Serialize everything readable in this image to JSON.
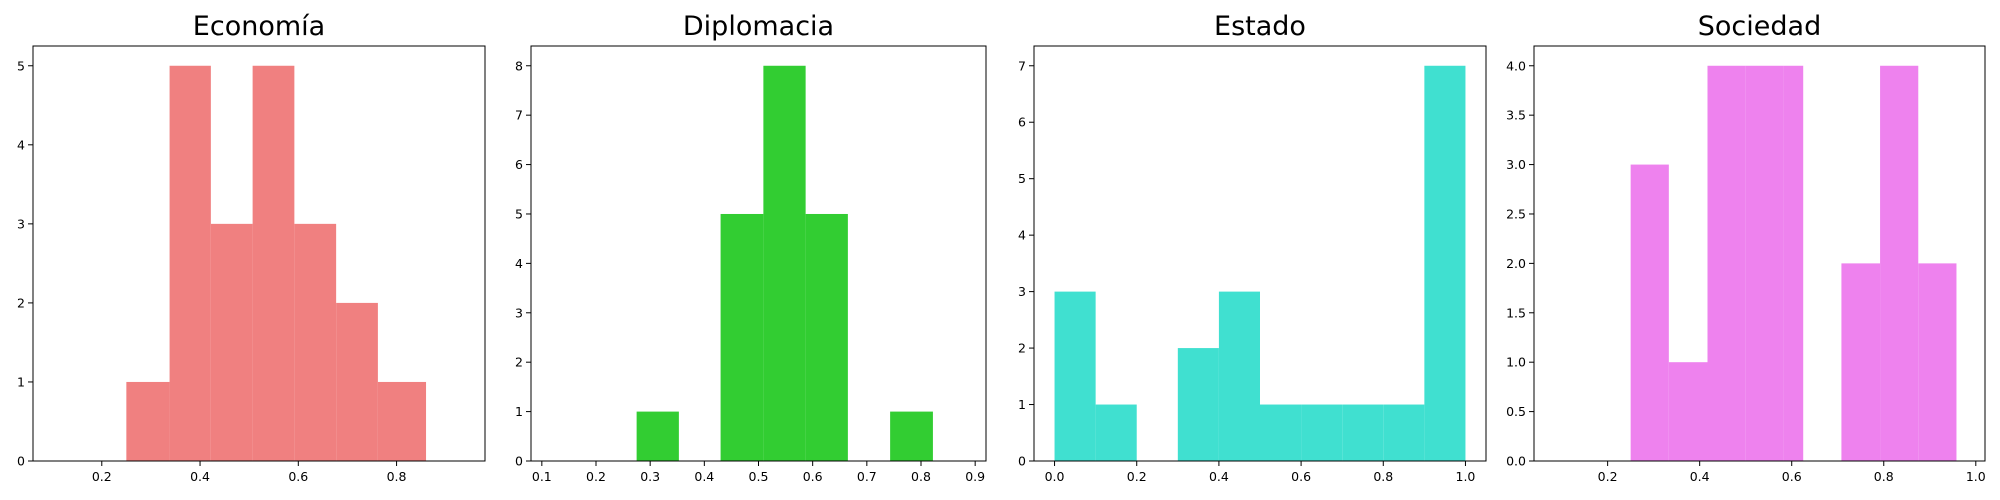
{
  "chart_data": [
    {
      "type": "bar",
      "title": "Economía",
      "color": "#f08080",
      "bins": [
        [
          0.25,
          0.338
        ],
        [
          0.338,
          0.422
        ],
        [
          0.422,
          0.507
        ],
        [
          0.507,
          0.592
        ],
        [
          0.592,
          0.677
        ],
        [
          0.677,
          0.762
        ],
        [
          0.762,
          0.86
        ]
      ],
      "values": [
        1,
        5,
        3,
        5,
        3,
        2,
        1
      ],
      "xlim": [
        0.06,
        0.98
      ],
      "ylim": [
        0,
        5.25
      ],
      "xticks": [
        0.2,
        0.4,
        0.6,
        0.8
      ],
      "xtick_labels": [
        "0.2",
        "0.4",
        "0.6",
        "0.8"
      ],
      "yticks": [
        0,
        1,
        2,
        3,
        4,
        5
      ],
      "ytick_labels": [
        "0",
        "1",
        "2",
        "3",
        "4",
        "5"
      ]
    },
    {
      "type": "bar",
      "title": "Diplomacia",
      "color": "#32cd32",
      "bins": [
        [
          0.275,
          0.353
        ],
        [
          0.43,
          0.509
        ],
        [
          0.509,
          0.587
        ],
        [
          0.587,
          0.665
        ],
        [
          0.743,
          0.822
        ]
      ],
      "values": [
        1,
        5,
        8,
        5,
        1
      ],
      "xlim": [
        0.08,
        0.92
      ],
      "ylim": [
        0,
        8.4
      ],
      "xticks": [
        0.1,
        0.2,
        0.3,
        0.4,
        0.5,
        0.6,
        0.7,
        0.8,
        0.9
      ],
      "xtick_labels": [
        "0.1",
        "0.2",
        "0.3",
        "0.4",
        "0.5",
        "0.6",
        "0.7",
        "0.8",
        "0.9"
      ],
      "yticks": [
        0,
        1,
        2,
        3,
        4,
        5,
        6,
        7,
        8
      ],
      "ytick_labels": [
        "0",
        "1",
        "2",
        "3",
        "4",
        "5",
        "6",
        "7",
        "8"
      ]
    },
    {
      "type": "bar",
      "title": "Estado",
      "color": "#40e0d0",
      "bins": [
        [
          0.0,
          0.1
        ],
        [
          0.1,
          0.2
        ],
        [
          0.3,
          0.4
        ],
        [
          0.4,
          0.5
        ],
        [
          0.5,
          0.6
        ],
        [
          0.6,
          0.7
        ],
        [
          0.7,
          0.8
        ],
        [
          0.8,
          0.9
        ],
        [
          0.9,
          1.0
        ]
      ],
      "values": [
        3,
        1,
        2,
        3,
        1,
        1,
        1,
        1,
        7
      ],
      "xlim": [
        -0.05,
        1.05
      ],
      "ylim": [
        0,
        7.35
      ],
      "xticks": [
        0.0,
        0.2,
        0.4,
        0.6,
        0.8,
        1.0
      ],
      "xtick_labels": [
        "0.0",
        "0.2",
        "0.4",
        "0.6",
        "0.8",
        "1.0"
      ],
      "yticks": [
        0,
        1,
        2,
        3,
        4,
        5,
        6,
        7
      ],
      "ytick_labels": [
        "0",
        "1",
        "2",
        "3",
        "4",
        "5",
        "6",
        "7"
      ]
    },
    {
      "type": "bar",
      "title": "Sociedad",
      "color": "#ee82ee",
      "bins": [
        [
          0.25,
          0.333
        ],
        [
          0.333,
          0.417
        ],
        [
          0.417,
          0.5
        ],
        [
          0.5,
          0.583
        ],
        [
          0.583,
          0.625
        ],
        [
          0.708,
          0.792
        ],
        [
          0.792,
          0.875
        ],
        [
          0.875,
          0.958
        ]
      ],
      "values": [
        3,
        1,
        4,
        4,
        4,
        2,
        4,
        2
      ],
      "xlim": [
        0.04,
        1.02
      ],
      "ylim": [
        0,
        4.2
      ],
      "xticks": [
        0.2,
        0.4,
        0.6,
        0.8,
        1.0
      ],
      "xtick_labels": [
        "0.2",
        "0.4",
        "0.6",
        "0.8",
        "1.0"
      ],
      "yticks": [
        0.0,
        0.5,
        1.0,
        1.5,
        2.0,
        2.5,
        3.0,
        3.5,
        4.0
      ],
      "ytick_labels": [
        "0.0",
        "0.5",
        "1.0",
        "1.5",
        "2.0",
        "2.5",
        "3.0",
        "3.5",
        "4.0"
      ]
    }
  ]
}
